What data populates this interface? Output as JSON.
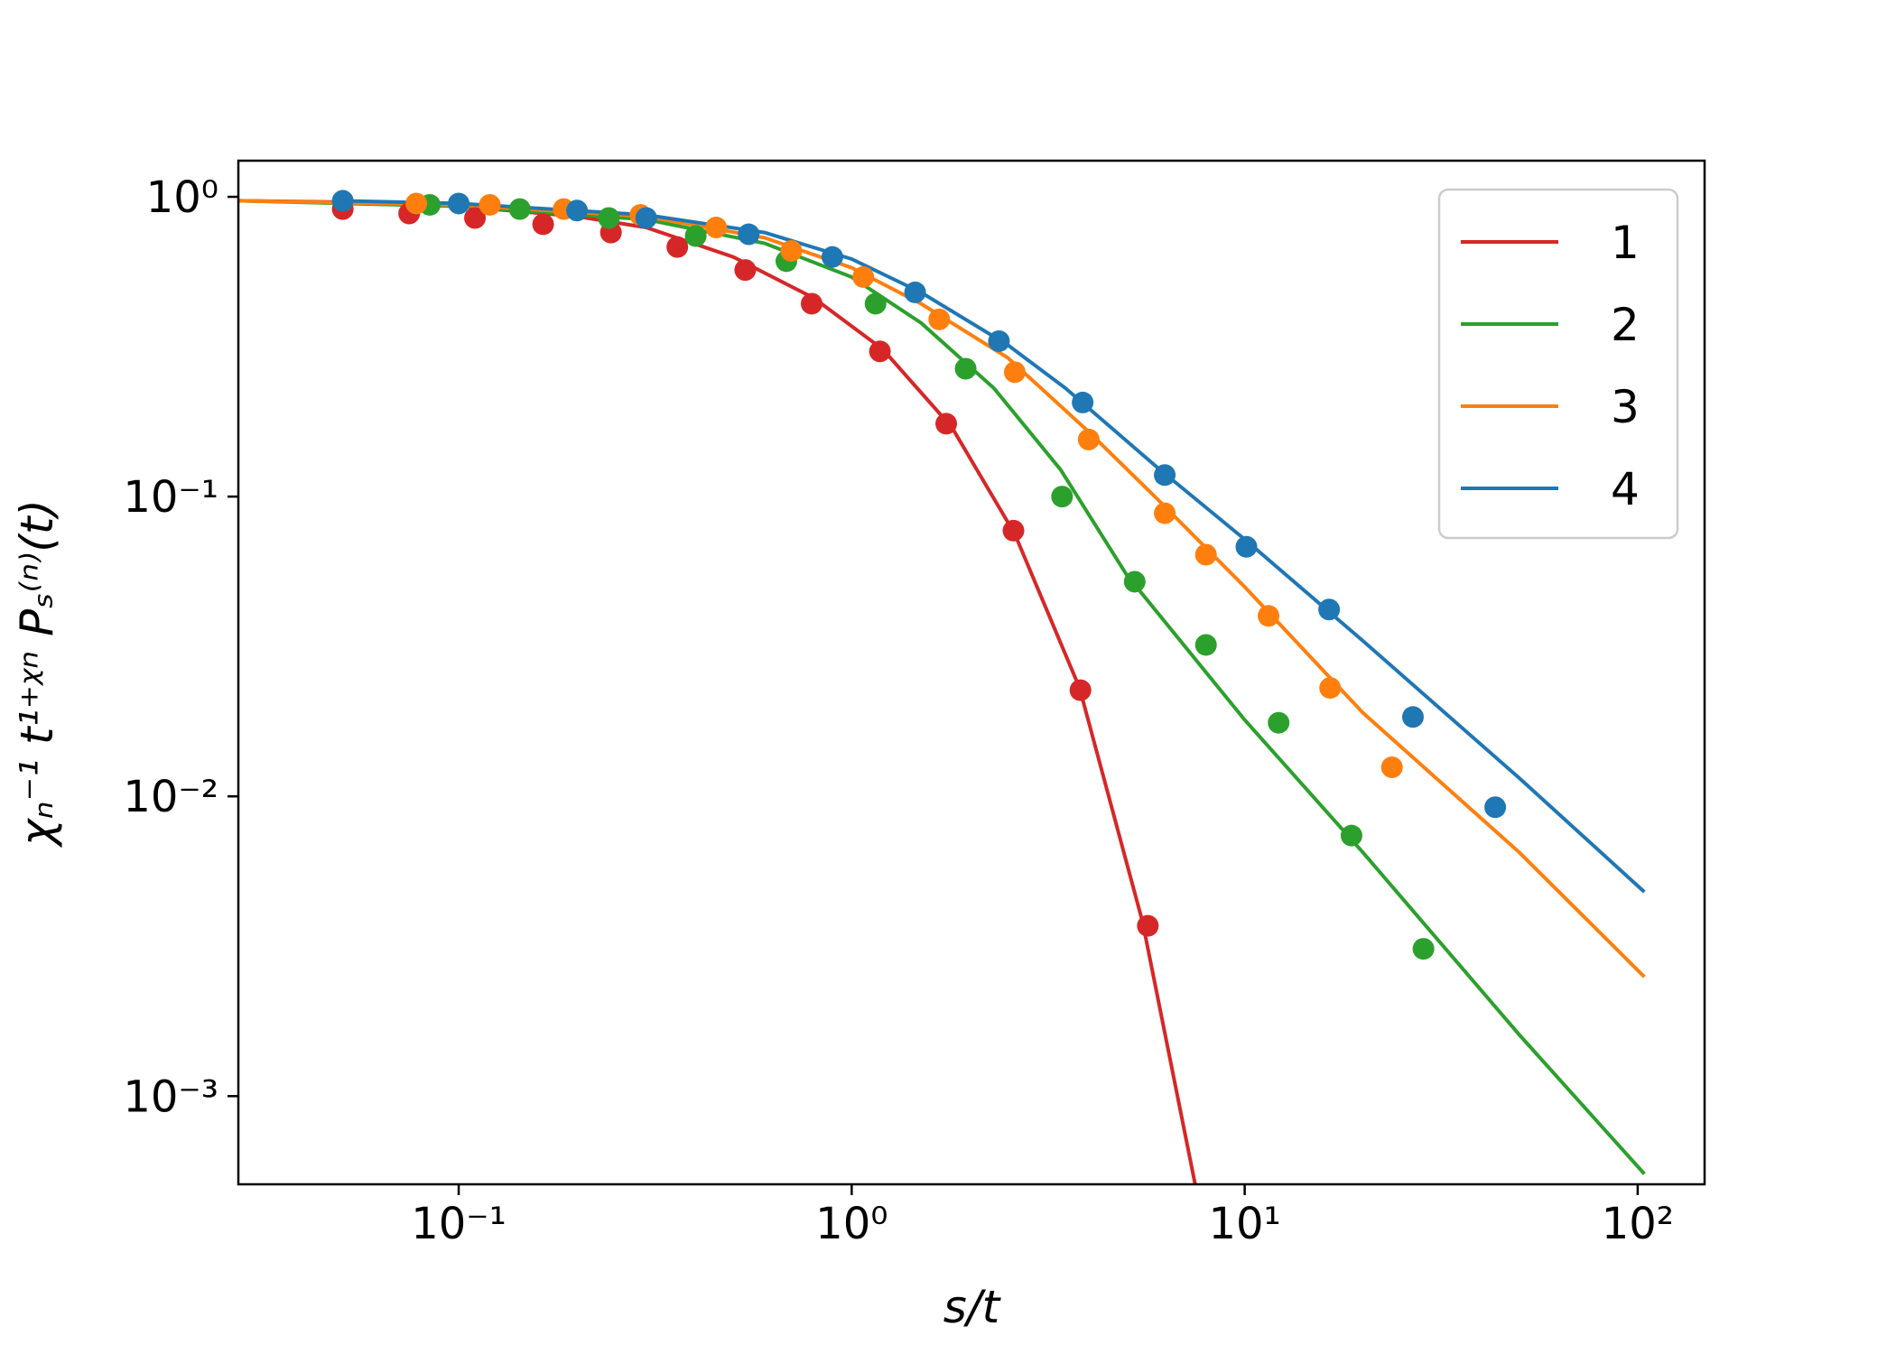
{
  "chart_data": {
    "type": "line",
    "xlabel": "s/t",
    "ylabel": "χₙ⁻¹ t¹⁺ᵡⁿ Pₛ⁽ⁿ⁾(t)",
    "log_x": true,
    "log_y": true,
    "xlim": [
      0.0275,
      148
    ],
    "ylim": [
      0.000508,
      1.32
    ],
    "xticks": [
      {
        "value": 0.1,
        "label": "10⁻¹"
      },
      {
        "value": 1,
        "label": "10⁰"
      },
      {
        "value": 10,
        "label": "10¹"
      },
      {
        "value": 100,
        "label": "10²"
      }
    ],
    "yticks": [
      {
        "value": 0.001,
        "label": "10⁻³"
      },
      {
        "value": 0.01,
        "label": "10⁻²"
      },
      {
        "value": 0.1,
        "label": "10⁻¹"
      },
      {
        "value": 1,
        "label": "10⁰"
      }
    ],
    "legend": "upper right",
    "series": [
      {
        "name": "1",
        "color": "#d62728",
        "x": [
          0.0275,
          0.05,
          0.1,
          0.2,
          0.3,
          0.5,
          0.8,
          1.2,
          1.8,
          2.6,
          3.8,
          5.5,
          7.5
        ],
        "values": [
          0.97,
          0.96,
          0.93,
          0.86,
          0.79,
          0.63,
          0.46,
          0.31,
          0.17,
          0.075,
          0.023,
          0.0038,
          0.0005
        ],
        "points_x": [
          0.0507,
          0.0748,
          0.11,
          0.164,
          0.244,
          0.36,
          0.536,
          0.791,
          1.18,
          1.74,
          2.58,
          3.82,
          5.67
        ],
        "points_values": [
          0.91,
          0.88,
          0.85,
          0.81,
          0.76,
          0.68,
          0.57,
          0.44,
          0.305,
          0.175,
          0.077,
          0.0226,
          0.0037
        ]
      },
      {
        "name": "2",
        "color": "#2ca02c",
        "x": [
          0.0275,
          0.1,
          0.3,
          0.6,
          1.0,
          1.5,
          2.3,
          3.4,
          5,
          10,
          20,
          50,
          104
        ],
        "values": [
          0.97,
          0.93,
          0.84,
          0.7,
          0.54,
          0.38,
          0.23,
          0.123,
          0.055,
          0.018,
          0.0065,
          0.0016,
          0.00055
        ],
        "points_x": [
          0.0844,
          0.143,
          0.241,
          0.401,
          0.682,
          1.15,
          1.95,
          3.43,
          5.25,
          7.97,
          12.2,
          18.7,
          28.5
        ],
        "points_values": [
          0.94,
          0.91,
          0.85,
          0.74,
          0.61,
          0.44,
          0.267,
          0.1,
          0.052,
          0.032,
          0.0176,
          0.0074,
          0.0031
        ]
      },
      {
        "name": "3",
        "color": "#ff7f0e",
        "x": [
          0.0275,
          0.1,
          0.3,
          0.6,
          1.0,
          1.5,
          2.5,
          4,
          6,
          10,
          20,
          50,
          104
        ],
        "values": [
          0.97,
          0.94,
          0.86,
          0.73,
          0.58,
          0.44,
          0.29,
          0.165,
          0.098,
          0.05,
          0.019,
          0.0065,
          0.0025
        ],
        "points_x": [
          0.078,
          0.12,
          0.185,
          0.29,
          0.452,
          0.702,
          1.07,
          1.67,
          2.6,
          4.01,
          6.26,
          7.97,
          11.5,
          16.5,
          23.7
        ],
        "points_values": [
          0.95,
          0.94,
          0.91,
          0.87,
          0.79,
          0.66,
          0.54,
          0.39,
          0.26,
          0.155,
          0.088,
          0.064,
          0.04,
          0.023,
          0.0125
        ]
      },
      {
        "name": "4",
        "color": "#1f77b4",
        "x": [
          0.05,
          0.1,
          0.3,
          0.6,
          1.0,
          1.5,
          2.5,
          3.5,
          6,
          10,
          20,
          50,
          104
        ],
        "values": [
          0.97,
          0.95,
          0.87,
          0.76,
          0.62,
          0.48,
          0.32,
          0.23,
          0.125,
          0.072,
          0.033,
          0.0115,
          0.0048
        ],
        "points_x": [
          0.0507,
          0.1,
          0.2,
          0.3,
          0.547,
          0.893,
          1.45,
          2.37,
          3.87,
          6.26,
          10.1,
          16.4,
          26.8,
          43.4
        ],
        "points_values": [
          0.97,
          0.95,
          0.9,
          0.85,
          0.75,
          0.63,
          0.48,
          0.33,
          0.206,
          0.118,
          0.068,
          0.042,
          0.0184,
          0.0092
        ]
      }
    ]
  }
}
